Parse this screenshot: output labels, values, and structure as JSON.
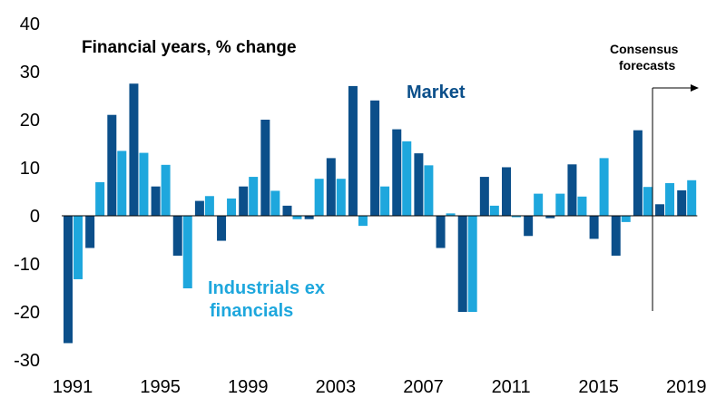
{
  "chart_data": {
    "type": "bar",
    "title": "Financial years, % change",
    "xlabel": "",
    "ylabel": "",
    "ylim": [
      -30,
      40
    ],
    "yticks": [
      -30,
      -20,
      -10,
      0,
      10,
      20,
      30,
      40
    ],
    "grid": false,
    "categories": [
      "1991",
      "1992",
      "1993",
      "1994",
      "1995",
      "1996",
      "1997",
      "1998",
      "1999",
      "2000",
      "2001",
      "2002",
      "2003",
      "2004",
      "2005",
      "2006",
      "2007",
      "2008",
      "2009",
      "2010",
      "2011",
      "2012",
      "2013",
      "2014",
      "2015",
      "2016",
      "2017",
      "2018",
      "2019"
    ],
    "x_tick_labels": [
      "1991",
      "1995",
      "1999",
      "2003",
      "2007",
      "2011",
      "2015",
      "2019"
    ],
    "series": [
      {
        "name": "Market",
        "color": "#0b4f8a",
        "values": [
          -26.5,
          -6.7,
          21,
          27.5,
          6.1,
          -8.3,
          3.1,
          -5.2,
          6.1,
          20,
          2.1,
          -0.7,
          12,
          27,
          24,
          18,
          13,
          -6.7,
          -20,
          8.1,
          10.1,
          -4.2,
          -0.5,
          10.7,
          -4.8,
          -8.3,
          17.8,
          2.4,
          5.3
        ]
      },
      {
        "name": "Industrials ex financials",
        "color": "#1ea7dd",
        "values": [
          -13.2,
          7,
          13.5,
          13.1,
          10.6,
          -15.1,
          4.1,
          3.6,
          8.1,
          5.2,
          -0.7,
          7.7,
          7.7,
          -2.1,
          6.1,
          15.5,
          10.5,
          0.5,
          -20,
          2.1,
          -0.3,
          4.6,
          4.6,
          4,
          12,
          -1.3,
          6,
          6.8,
          7.4
        ]
      }
    ],
    "series_labels": {
      "market": "Market",
      "industrials_line1": "Industrials ex",
      "industrials_line2": "financials"
    },
    "annotation": {
      "line1": "Consensus",
      "line2": "forecasts",
      "from_category": "2018"
    }
  }
}
